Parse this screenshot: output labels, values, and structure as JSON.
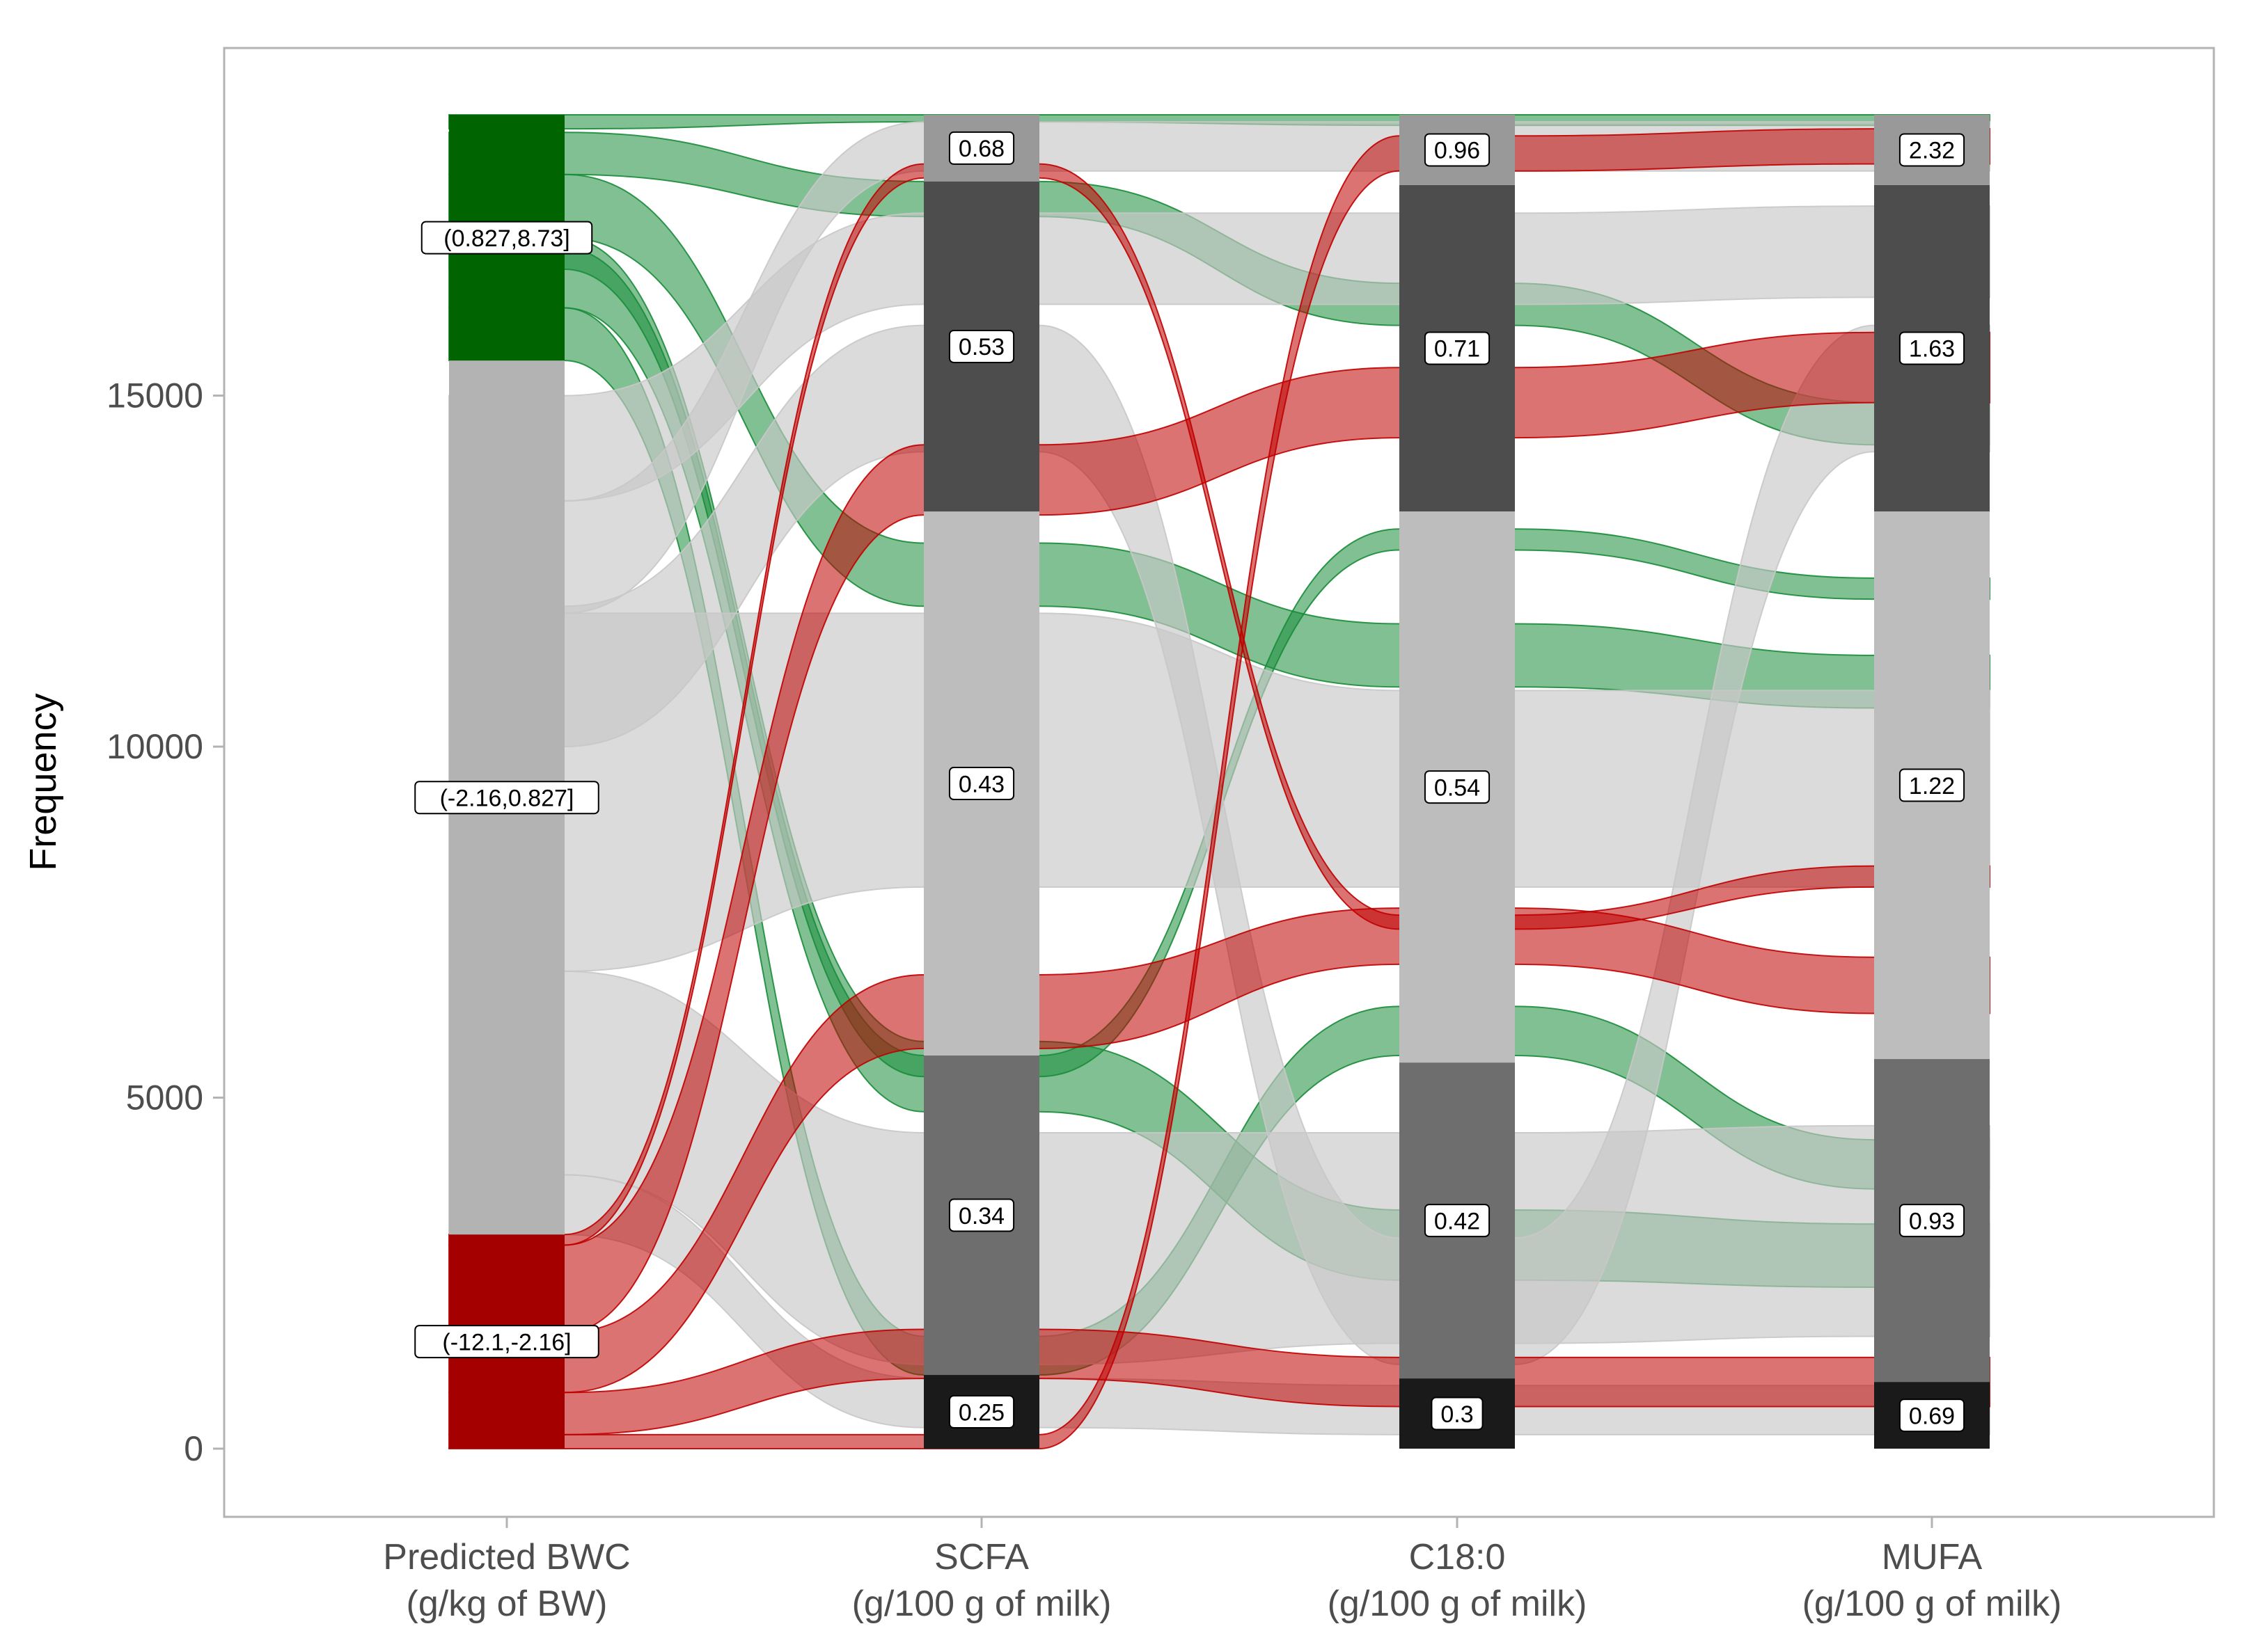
{
  "chart_data": {
    "type": "alluvial",
    "title": "",
    "ylabel": "Frequency",
    "ylim": [
      -1000,
      19400
    ],
    "yticks": [
      0,
      5000,
      10000,
      15000
    ],
    "total": 19000,
    "grid": false,
    "axes": [
      {
        "name": "Predicted BWC",
        "unit": "(g/kg of BW)",
        "strata": [
          {
            "label": "(-12.1,-2.16]",
            "from": 0,
            "to": 3050,
            "fill": "#a50000",
            "group": "low"
          },
          {
            "label": "(-2.16,0.827]",
            "from": 3050,
            "to": 15500,
            "fill": "#b3b3b3",
            "group": "mid"
          },
          {
            "label": "(0.827,8.73]",
            "from": 15500,
            "to": 19000,
            "fill": "#006400",
            "group": "high"
          }
        ]
      },
      {
        "name": "SCFA",
        "unit": "(g/100 g of milk)",
        "strata": [
          {
            "label": "0.25",
            "from": 0,
            "to": 1050,
            "fill": "#1a1a1a"
          },
          {
            "label": "0.34",
            "from": 1050,
            "to": 5600,
            "fill": "#6e6e6e"
          },
          {
            "label": "0.43",
            "from": 5600,
            "to": 13350,
            "fill": "#bdbdbd"
          },
          {
            "label": "0.53",
            "from": 13350,
            "to": 18050,
            "fill": "#4d4d4d"
          },
          {
            "label": "0.68",
            "from": 18050,
            "to": 19000,
            "fill": "#999999"
          }
        ]
      },
      {
        "name": "C18:0",
        "unit": "(g/100 g of milk)",
        "strata": [
          {
            "label": "0.3",
            "from": 0,
            "to": 1000,
            "fill": "#1a1a1a"
          },
          {
            "label": "0.42",
            "from": 1000,
            "to": 5500,
            "fill": "#6e6e6e"
          },
          {
            "label": "0.54",
            "from": 5500,
            "to": 13350,
            "fill": "#bdbdbd"
          },
          {
            "label": "0.71",
            "from": 13350,
            "to": 18000,
            "fill": "#4d4d4d"
          },
          {
            "label": "0.96",
            "from": 18000,
            "to": 19000,
            "fill": "#999999"
          }
        ]
      },
      {
        "name": "MUFA",
        "unit": "(g/100 g of milk)",
        "strata": [
          {
            "label": "0.69",
            "from": 0,
            "to": 950,
            "fill": "#1a1a1a"
          },
          {
            "label": "0.93",
            "from": 950,
            "to": 5550,
            "fill": "#6e6e6e"
          },
          {
            "label": "1.22",
            "from": 5550,
            "to": 13350,
            "fill": "#bdbdbd"
          },
          {
            "label": "1.63",
            "from": 13350,
            "to": 18000,
            "fill": "#4d4d4d"
          },
          {
            "label": "2.32",
            "from": 18000,
            "to": 19000,
            "fill": "#999999"
          }
        ]
      }
    ],
    "flow_colors": {
      "low": "#c00000",
      "mid": "#c8c8c8",
      "high": "#1a8c3a"
    },
    "flows": [
      {
        "group": "high",
        "path": [
          [
            18800,
            19000
          ],
          [
            18900,
            19000
          ],
          [
            18850,
            19000
          ],
          [
            18850,
            19000
          ]
        ]
      },
      {
        "group": "high",
        "path": [
          [
            18150,
            18750
          ],
          [
            17550,
            18050
          ],
          [
            16000,
            16600
          ],
          [
            14300,
            14900
          ]
        ]
      },
      {
        "group": "high",
        "path": [
          [
            17250,
            18150
          ],
          [
            12000,
            12900
          ],
          [
            10850,
            11750
          ],
          [
            10550,
            11300
          ]
        ]
      },
      {
        "group": "high",
        "path": [
          [
            16250,
            17250
          ],
          [
            4800,
            5800
          ],
          [
            2400,
            3400
          ],
          [
            2300,
            3200
          ]
        ]
      },
      {
        "group": "high",
        "path": [
          [
            15500,
            16250
          ],
          [
            1050,
            1600
          ],
          [
            5600,
            6300
          ],
          [
            3700,
            4400
          ]
        ]
      },
      {
        "group": "high",
        "path": [
          [
            16800,
            17100
          ],
          [
            5300,
            5600
          ],
          [
            12800,
            13100
          ],
          [
            12100,
            12400
          ]
        ]
      },
      {
        "group": "mid",
        "path": [
          [
            13500,
            15000
          ],
          [
            16300,
            17600
          ],
          [
            16300,
            17600
          ],
          [
            16400,
            17700
          ]
        ]
      },
      {
        "group": "mid",
        "path": [
          [
            11900,
            13500
          ],
          [
            18200,
            18900
          ],
          [
            18200,
            18900
          ],
          [
            18200,
            18900
          ]
        ]
      },
      {
        "group": "mid",
        "path": [
          [
            6800,
            11900
          ],
          [
            8000,
            11900
          ],
          [
            8000,
            10800
          ],
          [
            8000,
            10800
          ]
        ]
      },
      {
        "group": "mid",
        "path": [
          [
            3900,
            6800
          ],
          [
            1200,
            4500
          ],
          [
            1500,
            4500
          ],
          [
            1600,
            4600
          ]
        ]
      },
      {
        "group": "mid",
        "path": [
          [
            3050,
            3900
          ],
          [
            300,
            1000
          ],
          [
            200,
            900
          ],
          [
            200,
            900
          ]
        ]
      },
      {
        "group": "mid",
        "path": [
          [
            10000,
            12000
          ],
          [
            14200,
            16000
          ],
          [
            1200,
            3000
          ],
          [
            14200,
            16000
          ]
        ]
      },
      {
        "group": "low",
        "path": [
          [
            1650,
            2900
          ],
          [
            13300,
            14300
          ],
          [
            14400,
            15400
          ],
          [
            14900,
            15900
          ]
        ]
      },
      {
        "group": "low",
        "path": [
          [
            800,
            1650
          ],
          [
            5700,
            6750
          ],
          [
            6900,
            7700
          ],
          [
            6200,
            7000
          ]
        ]
      },
      {
        "group": "low",
        "path": [
          [
            200,
            800
          ],
          [
            1000,
            1700
          ],
          [
            600,
            1300
          ],
          [
            600,
            1300
          ]
        ]
      },
      {
        "group": "low",
        "path": [
          [
            0,
            200
          ],
          [
            0,
            200
          ],
          [
            18200,
            18700
          ],
          [
            18300,
            18800
          ]
        ]
      },
      {
        "group": "low",
        "path": [
          [
            2900,
            3050
          ],
          [
            18100,
            18300
          ],
          [
            7400,
            7600
          ],
          [
            8000,
            8300
          ]
        ]
      }
    ]
  }
}
